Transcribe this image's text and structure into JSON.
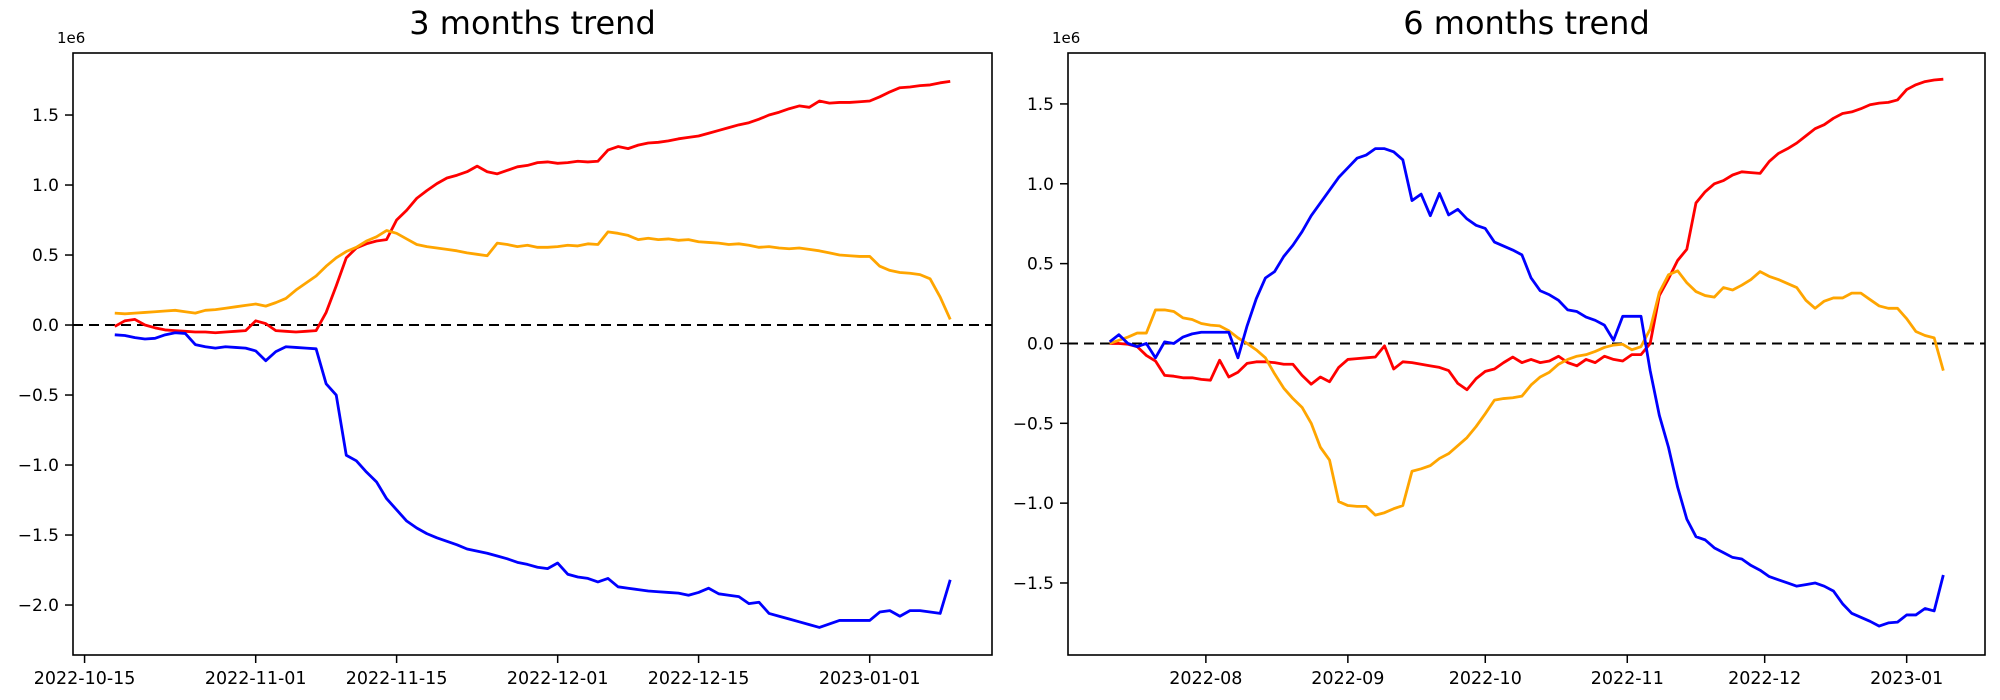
{
  "figure": {
    "background": "#ffffff",
    "text_color": "#000000"
  },
  "chart_data": [
    {
      "type": "line",
      "title": "3 months trend",
      "offset_label": "1e6",
      "xlabel": "",
      "ylabel": "",
      "grid": false,
      "legend": null,
      "zero_line": {
        "show": true,
        "color": "#000000",
        "style": "dashed"
      },
      "start_date": "2022-10-18",
      "end_date": "2023-01-09",
      "step_days": 1,
      "ylim": [
        -2.357,
        1.943
      ],
      "y_ticks": [
        {
          "v": 1.5,
          "label": "1.5"
        },
        {
          "v": 1.0,
          "label": "1.0"
        },
        {
          "v": 0.5,
          "label": "0.5"
        },
        {
          "v": 0.0,
          "label": "0.0"
        },
        {
          "v": -0.5,
          "label": "−0.5"
        },
        {
          "v": -1.0,
          "label": "−1.0"
        },
        {
          "v": -1.5,
          "label": "−1.5"
        },
        {
          "v": -2.0,
          "label": "−2.0"
        }
      ],
      "x_ticks": [
        {
          "date": "2022-10-15",
          "label": "2022-10-15"
        },
        {
          "date": "2022-11-01",
          "label": "2022-11-01"
        },
        {
          "date": "2022-11-15",
          "label": "2022-11-15"
        },
        {
          "date": "2022-12-01",
          "label": "2022-12-01"
        },
        {
          "date": "2022-12-15",
          "label": "2022-12-15"
        },
        {
          "date": "2023-01-01",
          "label": "2023-01-01"
        }
      ],
      "series": [
        {
          "name": "red",
          "color": "#ff0000",
          "values": [
            -0.01,
            0.03,
            0.04,
            0.0,
            -0.02,
            -0.035,
            -0.04,
            -0.045,
            -0.05,
            -0.05,
            -0.055,
            -0.05,
            -0.045,
            -0.04,
            0.03,
            0.01,
            -0.04,
            -0.045,
            -0.05,
            -0.045,
            -0.04,
            0.09,
            0.28,
            0.48,
            0.55,
            0.58,
            0.6,
            0.61,
            0.75,
            0.82,
            0.905,
            0.96,
            1.01,
            1.05,
            1.07,
            1.095,
            1.135,
            1.095,
            1.08,
            1.105,
            1.13,
            1.14,
            1.16,
            1.165,
            1.155,
            1.16,
            1.17,
            1.165,
            1.17,
            1.25,
            1.275,
            1.26,
            1.285,
            1.3,
            1.305,
            1.315,
            1.33,
            1.34,
            1.35,
            1.37,
            1.39,
            1.41,
            1.43,
            1.445,
            1.47,
            1.5,
            1.52,
            1.545,
            1.565,
            1.555,
            1.6,
            1.585,
            1.59,
            1.59,
            1.595,
            1.6,
            1.63,
            1.665,
            1.695,
            1.7,
            1.71,
            1.715,
            1.73,
            1.74
          ]
        },
        {
          "name": "orange",
          "color": "#ffa500",
          "values": [
            0.085,
            0.08,
            0.085,
            0.09,
            0.095,
            0.1,
            0.105,
            0.095,
            0.085,
            0.105,
            0.11,
            0.12,
            0.13,
            0.14,
            0.15,
            0.135,
            0.16,
            0.19,
            0.25,
            0.3,
            0.35,
            0.42,
            0.48,
            0.525,
            0.555,
            0.6,
            0.63,
            0.675,
            0.655,
            0.615,
            0.575,
            0.56,
            0.55,
            0.54,
            0.53,
            0.515,
            0.505,
            0.495,
            0.585,
            0.575,
            0.56,
            0.57,
            0.555,
            0.555,
            0.56,
            0.57,
            0.565,
            0.58,
            0.575,
            0.665,
            0.655,
            0.64,
            0.61,
            0.62,
            0.61,
            0.615,
            0.605,
            0.61,
            0.595,
            0.59,
            0.585,
            0.575,
            0.58,
            0.57,
            0.555,
            0.56,
            0.55,
            0.545,
            0.55,
            0.54,
            0.53,
            0.515,
            0.5,
            0.495,
            0.49,
            0.49,
            0.42,
            0.39,
            0.375,
            0.37,
            0.36,
            0.33,
            0.2,
            0.04
          ]
        },
        {
          "name": "blue",
          "color": "#0000ff",
          "values": [
            -0.07,
            -0.075,
            -0.09,
            -0.1,
            -0.095,
            -0.07,
            -0.055,
            -0.06,
            -0.14,
            -0.155,
            -0.165,
            -0.155,
            -0.16,
            -0.165,
            -0.185,
            -0.255,
            -0.19,
            -0.155,
            -0.16,
            -0.165,
            -0.17,
            -0.42,
            -0.5,
            -0.93,
            -0.97,
            -1.05,
            -1.12,
            -1.24,
            -1.32,
            -1.4,
            -1.45,
            -1.49,
            -1.52,
            -1.545,
            -1.57,
            -1.6,
            -1.615,
            -1.63,
            -1.65,
            -1.67,
            -1.695,
            -1.71,
            -1.73,
            -1.74,
            -1.7,
            -1.78,
            -1.8,
            -1.81,
            -1.835,
            -1.81,
            -1.87,
            -1.88,
            -1.89,
            -1.9,
            -1.905,
            -1.91,
            -1.915,
            -1.93,
            -1.91,
            -1.88,
            -1.92,
            -1.93,
            -1.94,
            -1.99,
            -1.98,
            -2.06,
            -2.08,
            -2.1,
            -2.12,
            -2.14,
            -2.16,
            -2.135,
            -2.11,
            -2.11,
            -2.11,
            -2.11,
            -2.05,
            -2.04,
            -2.08,
            -2.04,
            -2.04,
            -2.05,
            -2.06,
            -1.82
          ]
        }
      ]
    },
    {
      "type": "line",
      "title": "6 months trend",
      "offset_label": "1e6",
      "xlabel": "",
      "ylabel": "",
      "grid": false,
      "legend": null,
      "zero_line": {
        "show": true,
        "color": "#000000",
        "style": "dashed"
      },
      "start_date": "2022-07-11",
      "end_date": "2023-01-09",
      "step_days": 2,
      "ylim": [
        -1.951,
        1.819
      ],
      "y_ticks": [
        {
          "v": 1.5,
          "label": "1.5"
        },
        {
          "v": 1.0,
          "label": "1.0"
        },
        {
          "v": 0.5,
          "label": "0.5"
        },
        {
          "v": 0.0,
          "label": "0.0"
        },
        {
          "v": -0.5,
          "label": "−0.5"
        },
        {
          "v": -1.0,
          "label": "−1.0"
        },
        {
          "v": -1.5,
          "label": "−1.5"
        }
      ],
      "x_ticks": [
        {
          "date": "2022-08-01",
          "label": "2022-08"
        },
        {
          "date": "2022-09-01",
          "label": "2022-09"
        },
        {
          "date": "2022-10-01",
          "label": "2022-10"
        },
        {
          "date": "2022-11-01",
          "label": "2022-11"
        },
        {
          "date": "2022-12-01",
          "label": "2022-12"
        },
        {
          "date": "2023-01-01",
          "label": "2023-01"
        }
      ],
      "series": [
        {
          "name": "red",
          "color": "#ff0000",
          "values": [
            0.0,
            0.0,
            -0.005,
            -0.02,
            -0.075,
            -0.11,
            -0.2,
            -0.205,
            -0.215,
            -0.215,
            -0.225,
            -0.23,
            -0.105,
            -0.21,
            -0.18,
            -0.125,
            -0.115,
            -0.115,
            -0.12,
            -0.13,
            -0.13,
            -0.2,
            -0.255,
            -0.21,
            -0.24,
            -0.15,
            -0.1,
            -0.095,
            -0.09,
            -0.085,
            -0.015,
            -0.16,
            -0.115,
            -0.12,
            -0.13,
            -0.14,
            -0.15,
            -0.17,
            -0.25,
            -0.29,
            -0.22,
            -0.175,
            -0.16,
            -0.12,
            -0.085,
            -0.12,
            -0.1,
            -0.12,
            -0.11,
            -0.08,
            -0.12,
            -0.14,
            -0.1,
            -0.12,
            -0.08,
            -0.1,
            -0.11,
            -0.07,
            -0.07,
            0.0,
            0.3,
            0.405,
            0.52,
            0.59,
            0.88,
            0.95,
            1.0,
            1.02,
            1.055,
            1.075,
            1.07,
            1.065,
            1.14,
            1.19,
            1.22,
            1.255,
            1.3,
            1.345,
            1.37,
            1.41,
            1.44,
            1.45,
            1.47,
            1.495,
            1.505,
            1.51,
            1.525,
            1.59,
            1.62,
            1.64,
            1.65,
            1.655
          ]
        },
        {
          "name": "orange",
          "color": "#ffa500",
          "values": [
            0.0,
            0.02,
            0.04,
            0.065,
            0.065,
            0.21,
            0.21,
            0.2,
            0.16,
            0.15,
            0.125,
            0.115,
            0.11,
            0.08,
            0.035,
            0.0,
            -0.04,
            -0.09,
            -0.19,
            -0.28,
            -0.345,
            -0.4,
            -0.5,
            -0.65,
            -0.73,
            -0.99,
            -1.015,
            -1.02,
            -1.02,
            -1.075,
            -1.06,
            -1.035,
            -1.015,
            -0.8,
            -0.785,
            -0.765,
            -0.72,
            -0.69,
            -0.64,
            -0.59,
            -0.52,
            -0.44,
            -0.355,
            -0.345,
            -0.34,
            -0.33,
            -0.26,
            -0.21,
            -0.18,
            -0.13,
            -0.1,
            -0.08,
            -0.07,
            -0.05,
            -0.025,
            -0.01,
            -0.005,
            -0.04,
            -0.02,
            0.09,
            0.32,
            0.43,
            0.455,
            0.38,
            0.325,
            0.3,
            0.29,
            0.35,
            0.335,
            0.365,
            0.4,
            0.45,
            0.42,
            0.4,
            0.375,
            0.35,
            0.27,
            0.22,
            0.265,
            0.285,
            0.285,
            0.315,
            0.315,
            0.275,
            0.235,
            0.22,
            0.22,
            0.155,
            0.075,
            0.05,
            0.035,
            -0.17
          ]
        },
        {
          "name": "blue",
          "color": "#0000ff",
          "values": [
            0.01,
            0.055,
            0.0,
            -0.02,
            0.0,
            -0.09,
            0.01,
            0.0,
            0.04,
            0.06,
            0.07,
            0.07,
            0.07,
            0.07,
            -0.09,
            0.11,
            0.28,
            0.41,
            0.45,
            0.545,
            0.615,
            0.7,
            0.8,
            0.88,
            0.96,
            1.04,
            1.1,
            1.16,
            1.18,
            1.22,
            1.22,
            1.2,
            1.15,
            0.895,
            0.935,
            0.8,
            0.94,
            0.805,
            0.84,
            0.78,
            0.74,
            0.72,
            0.635,
            0.61,
            0.585,
            0.555,
            0.41,
            0.33,
            0.305,
            0.27,
            0.21,
            0.2,
            0.165,
            0.145,
            0.115,
            0.02,
            0.17,
            0.17,
            0.17,
            -0.17,
            -0.45,
            -0.65,
            -0.9,
            -1.1,
            -1.21,
            -1.23,
            -1.28,
            -1.31,
            -1.34,
            -1.35,
            -1.39,
            -1.42,
            -1.46,
            -1.48,
            -1.5,
            -1.52,
            -1.51,
            -1.5,
            -1.52,
            -1.55,
            -1.63,
            -1.69,
            -1.715,
            -1.74,
            -1.77,
            -1.75,
            -1.745,
            -1.7,
            -1.7,
            -1.66,
            -1.675,
            -1.45
          ]
        }
      ]
    }
  ]
}
